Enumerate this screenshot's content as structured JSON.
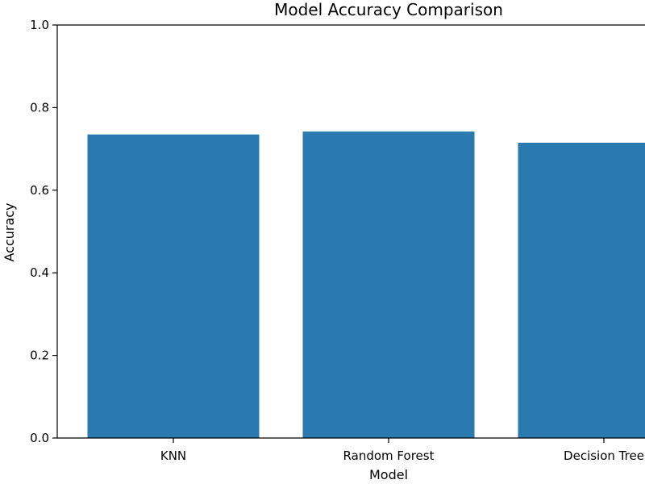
{
  "chart_data": {
    "type": "bar",
    "title": "Model Accuracy Comparison",
    "xlabel": "Model",
    "ylabel": "Accuracy",
    "categories": [
      "KNN",
      "Random Forest",
      "Decision Tree"
    ],
    "values": [
      0.735,
      0.742,
      0.715
    ],
    "ylim": [
      0,
      1
    ],
    "yticks": [
      "0.0",
      "0.2",
      "0.4",
      "0.6",
      "0.8",
      "1.0"
    ],
    "grid": false,
    "bar_color": "#2a7ab0"
  }
}
